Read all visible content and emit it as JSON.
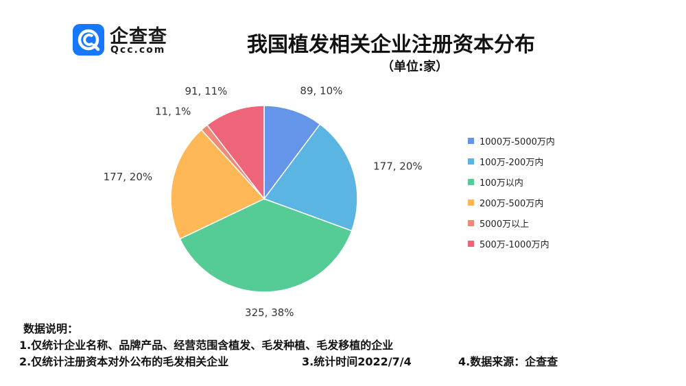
{
  "logo": {
    "name_cn": "企查查",
    "name_en": "Qcc.com",
    "icon": "qcc-logo-icon",
    "brand_color": "#1677ff"
  },
  "notes": {
    "heading": "数据说明：",
    "line1": "1.仅统计企业名称、品牌产品、经营范围含植发、毛发种植、毛发移植的企业",
    "line2": "2.仅统计注册资本对外公布的毛发相关企业",
    "line3": "3.统计时间2022/7/4",
    "line4": "4.数据来源：企查查"
  },
  "chart_data": {
    "type": "pie",
    "title": "我国植发相关企业注册资本分布",
    "subtitle": "（单位:家）",
    "legend_position": "right",
    "slices": [
      {
        "label": "1000万-5000万内",
        "value": 89,
        "percent": "10%",
        "data_label": "89, 10%",
        "color": "#6495e8"
      },
      {
        "label": "100万-200万内",
        "value": 177,
        "percent": "20%",
        "data_label": "177, 20%",
        "color": "#5ab5e3"
      },
      {
        "label": "100万以内",
        "value": 325,
        "percent": "38%",
        "data_label": "325, 38%",
        "color": "#55cc96"
      },
      {
        "label": "200万-500万内",
        "value": 177,
        "percent": "20%",
        "data_label": "177, 20%",
        "color": "#ffb855"
      },
      {
        "label": "5000万以上",
        "value": 11,
        "percent": "1%",
        "data_label": "11, 1%",
        "color": "#f08a78"
      },
      {
        "label": "500万-1000万内",
        "value": 91,
        "percent": "11%",
        "data_label": "91, 11%",
        "color": "#ee6478"
      }
    ]
  }
}
